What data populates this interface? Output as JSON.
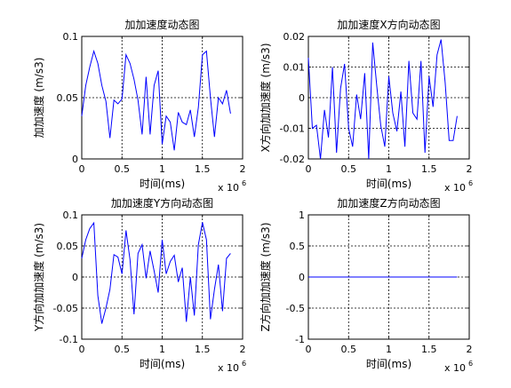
{
  "chart_data": [
    {
      "type": "line",
      "title": "加加速度动态图",
      "xlabel": "时间(ms)",
      "ylabel": "加加速度 (m/s3)",
      "x_multiplier": "x 10",
      "x_exponent": "6",
      "xlim": [
        0,
        2
      ],
      "ylim": [
        0,
        0.1
      ],
      "xticks": [
        "0",
        "0.5",
        "1",
        "1.5",
        "2"
      ],
      "yticks": [
        "0",
        "0.05",
        "0.1"
      ],
      "ytick_values": [
        0,
        0.05,
        0.1
      ],
      "grid": true,
      "series_color": "#0000ff",
      "x": [
        0,
        0.05,
        0.1,
        0.15,
        0.2,
        0.25,
        0.3,
        0.35,
        0.4,
        0.45,
        0.5,
        0.55,
        0.6,
        0.65,
        0.7,
        0.75,
        0.8,
        0.85,
        0.9,
        0.95,
        1.0,
        1.05,
        1.1,
        1.15,
        1.2,
        1.25,
        1.3,
        1.35,
        1.4,
        1.45,
        1.5,
        1.55,
        1.6,
        1.65,
        1.7,
        1.75,
        1.8,
        1.85
      ],
      "y": [
        0.035,
        0.06,
        0.075,
        0.088,
        0.078,
        0.06,
        0.047,
        0.017,
        0.048,
        0.045,
        0.049,
        0.085,
        0.078,
        0.065,
        0.048,
        0.02,
        0.067,
        0.02,
        0.06,
        0.072,
        0.012,
        0.035,
        0.03,
        0.007,
        0.038,
        0.03,
        0.028,
        0.04,
        0.018,
        0.042,
        0.085,
        0.088,
        0.05,
        0.018,
        0.05,
        0.045,
        0.056,
        0.037
      ]
    },
    {
      "type": "line",
      "title": "加加速度X方向动态图",
      "xlabel": "时间(ms)",
      "ylabel": "X方向加加速度 (m/s3)",
      "x_multiplier": "x 10",
      "x_exponent": "6",
      "xlim": [
        0,
        2
      ],
      "ylim": [
        -0.02,
        0.02
      ],
      "xticks": [
        "0",
        "0.5",
        "1",
        "1.5",
        "2"
      ],
      "yticks": [
        "-0.02",
        "-0.01",
        "0",
        "0.01",
        "0.02"
      ],
      "ytick_values": [
        -0.02,
        -0.01,
        0,
        0.01,
        0.02
      ],
      "grid": true,
      "series_color": "#0000ff",
      "x": [
        0,
        0.05,
        0.1,
        0.15,
        0.2,
        0.25,
        0.3,
        0.35,
        0.4,
        0.45,
        0.5,
        0.55,
        0.6,
        0.65,
        0.7,
        0.75,
        0.8,
        0.85,
        0.9,
        0.95,
        1.0,
        1.05,
        1.1,
        1.15,
        1.2,
        1.25,
        1.3,
        1.35,
        1.4,
        1.45,
        1.5,
        1.55,
        1.6,
        1.65,
        1.7,
        1.75,
        1.8,
        1.85
      ],
      "y": [
        0.013,
        -0.01,
        -0.009,
        -0.02,
        -0.004,
        -0.013,
        0.01,
        -0.018,
        0.003,
        0.011,
        -0.01,
        -0.016,
        0.001,
        -0.007,
        0.008,
        -0.02,
        0.018,
        0.004,
        -0.009,
        -0.016,
        0.007,
        -0.005,
        -0.011,
        0.002,
        -0.016,
        0.012,
        -0.005,
        -0.007,
        0.012,
        -0.018,
        0.007,
        -0.003,
        0.014,
        0.019,
        0.005,
        -0.014,
        -0.014,
        -0.006
      ]
    },
    {
      "type": "line",
      "title": "加加速度Y方向动态图",
      "xlabel": "时间(ms)",
      "ylabel": "Y方向加加速度 (m/s3)",
      "x_multiplier": "x 10",
      "x_exponent": "6",
      "xlim": [
        0,
        2
      ],
      "ylim": [
        -0.1,
        0.1
      ],
      "xticks": [
        "0",
        "0.5",
        "1",
        "1.5",
        "2"
      ],
      "yticks": [
        "-0.1",
        "-0.05",
        "0",
        "0.05",
        "0.1"
      ],
      "ytick_values": [
        -0.1,
        -0.05,
        0,
        0.05,
        0.1
      ],
      "grid": true,
      "series_color": "#0000ff",
      "x": [
        0,
        0.05,
        0.1,
        0.15,
        0.2,
        0.25,
        0.3,
        0.35,
        0.4,
        0.45,
        0.5,
        0.55,
        0.6,
        0.65,
        0.7,
        0.75,
        0.8,
        0.85,
        0.9,
        0.95,
        1.0,
        1.05,
        1.1,
        1.15,
        1.2,
        1.25,
        1.3,
        1.35,
        1.4,
        1.45,
        1.5,
        1.55,
        1.6,
        1.65,
        1.7,
        1.75,
        1.8,
        1.85
      ],
      "y": [
        0.03,
        0.06,
        0.078,
        0.087,
        -0.03,
        -0.075,
        -0.05,
        -0.02,
        0.036,
        0.032,
        0.005,
        0.075,
        0.028,
        -0.06,
        0.038,
        0.052,
        -0.002,
        0.042,
        0.01,
        -0.025,
        0.06,
        0.005,
        0.025,
        0.035,
        -0.008,
        0.015,
        -0.072,
        0.0,
        -0.062,
        0.052,
        0.088,
        0.06,
        -0.068,
        -0.02,
        0.02,
        -0.055,
        0.03,
        0.038
      ]
    },
    {
      "type": "line",
      "title": "加加速度Z方向动态图",
      "xlabel": "时间(ms)",
      "ylabel": "Z方向加加速度 (m/s3)",
      "x_multiplier": "x 10",
      "x_exponent": "6",
      "xlim": [
        0,
        2
      ],
      "ylim": [
        -1,
        1
      ],
      "xticks": [
        "0",
        "0.5",
        "1",
        "1.5",
        "2"
      ],
      "yticks": [
        "-1",
        "-0.5",
        "0",
        "0.5",
        "1"
      ],
      "ytick_values": [
        -1,
        -0.5,
        0,
        0.5,
        1
      ],
      "grid": true,
      "series_color": "#0000ff",
      "x": [
        0,
        1.85
      ],
      "y": [
        0,
        0
      ]
    }
  ]
}
